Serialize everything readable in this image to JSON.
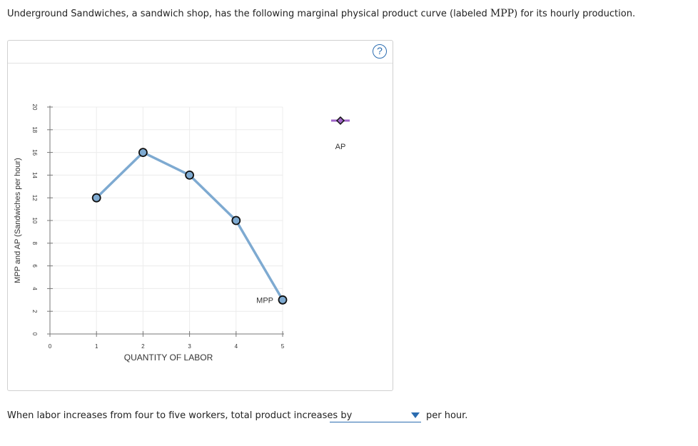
{
  "question": {
    "text_before": "Underground Sandwiches, a sandwich shop, has the following marginal physical product curve (labeled ",
    "label": "MPP",
    "text_after": ") for its hourly production."
  },
  "help": {
    "icon": "question-mark-icon",
    "label": "?"
  },
  "chart_data": {
    "type": "line",
    "xlabel": "QUANTITY OF LABOR",
    "ylabel": "MPP and AP (Sandwiches per hour)",
    "xlim": [
      0,
      5
    ],
    "ylim": [
      0,
      20
    ],
    "xticks": [
      0,
      1,
      2,
      3,
      4,
      5
    ],
    "yticks": [
      0,
      2,
      4,
      6,
      8,
      10,
      12,
      14,
      16,
      18,
      20
    ],
    "grid": true,
    "series": [
      {
        "name": "MPP",
        "x": [
          1,
          2,
          3,
          4,
          5
        ],
        "y": [
          12,
          16,
          14,
          10,
          3
        ],
        "color": "#7eaad1",
        "marker": "circle",
        "marker_fill": "#7eaad1"
      }
    ],
    "legend": [
      {
        "name": "AP",
        "marker": "diamond",
        "color": "#a066c8",
        "placement": "top-right"
      }
    ]
  },
  "answer": {
    "prompt": "When labor increases from four to five workers, total product increases by",
    "value": "",
    "suffix": "per hour."
  }
}
